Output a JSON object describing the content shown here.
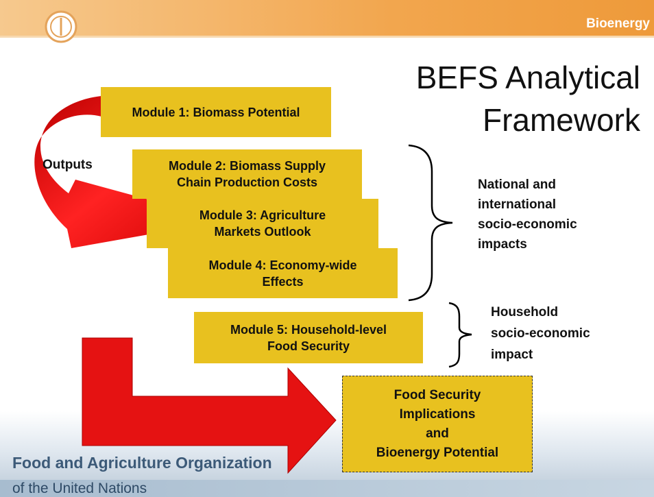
{
  "header": {
    "badge": "Bioenergy"
  },
  "title": [
    "BEFS Analytical",
    "Framework"
  ],
  "outputs_label": "Outputs",
  "modules": [
    [
      "Module 1: Biomass Potential"
    ],
    [
      "Module 2: Biomass Supply",
      "Chain Production Costs"
    ],
    [
      "Module 3: Agriculture",
      "Markets Outlook"
    ],
    [
      "Module 4: Economy-wide",
      "Effects"
    ],
    [
      "Module 5: Household-level",
      "Food Security"
    ]
  ],
  "impacts": [
    [
      "National and",
      "international",
      "socio-economic",
      "impacts"
    ],
    [
      "Household",
      "socio-economic",
      "impact"
    ]
  ],
  "result": [
    "Food Security",
    "Implications",
    "and",
    "Bioenergy Potential"
  ],
  "footer": [
    "Food and Agriculture Organization",
    "of the United Nations"
  ]
}
